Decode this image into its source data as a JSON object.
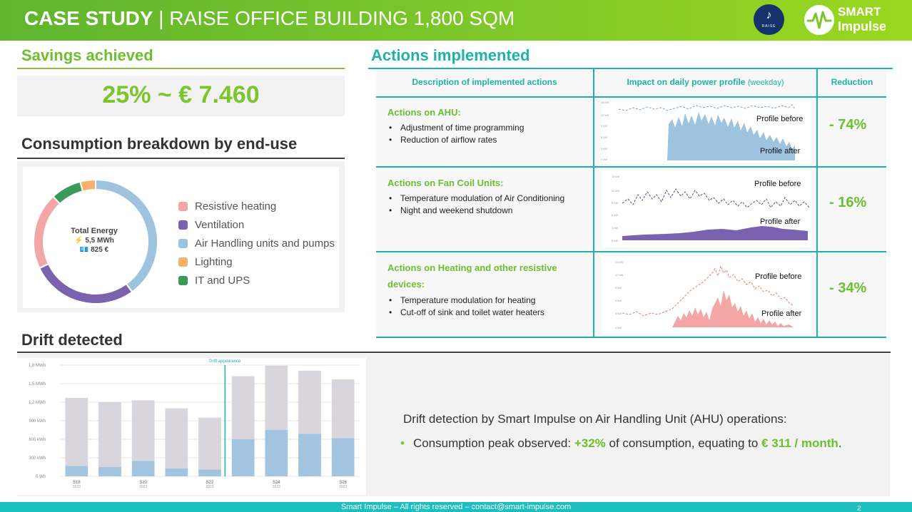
{
  "header": {
    "title_bold": "CASE STUDY",
    "title_rest": " | RAISE OFFICE BUILDING 1,800 SQM",
    "raise_logo_text": "RAISE",
    "smart_logo_line1": "SMART",
    "smart_logo_line2": "Impulse"
  },
  "savings": {
    "heading": "Savings achieved",
    "value": "25% ~ € 7.460"
  },
  "consumption": {
    "heading": "Consumption breakdown by end-use",
    "total_label": "Total Energy",
    "total_energy": "⚡ 5,5 MWh",
    "total_cost": "💶 825 €",
    "legend": [
      {
        "label": "Resistive heating",
        "color": "#f4a6a6"
      },
      {
        "label": "Ventilation",
        "color": "#7b62b0"
      },
      {
        "label": "Air Handling units and pumps",
        "color": "#9dc3df"
      },
      {
        "label": "Lighting",
        "color": "#f7b26a"
      },
      {
        "label": "IT and UPS",
        "color": "#3a9a5a"
      }
    ],
    "chart_data": {
      "type": "pie",
      "categories": [
        "Air Handling units and pumps",
        "Ventilation",
        "Resistive heating",
        "IT and UPS",
        "Lighting"
      ],
      "values": [
        40,
        28,
        20,
        8,
        4
      ],
      "colors": [
        "#9dc3df",
        "#7b62b0",
        "#f4a6a6",
        "#3a9a5a",
        "#f7b26a"
      ]
    }
  },
  "actions": {
    "heading": "Actions implemented",
    "columns": {
      "description": "Description of implemented actions",
      "impact": "Impact on daily power profile",
      "impact_note": "(weekday)",
      "reduction": "Reduction"
    },
    "rows": [
      {
        "title": "Actions on AHU:",
        "bullets": [
          "Adjustment of time programming",
          "Reduction of airflow rates"
        ],
        "reduction": "- 74%",
        "label_before": "Profile before",
        "label_after": "Profile after"
      },
      {
        "title": "Actions on Fan Coil Units:",
        "bullets": [
          "Temperature modulation of Air Conditioning",
          "Night and weekend shutdown"
        ],
        "reduction": "- 16%",
        "label_before": "Profile before",
        "label_after": "Profile after"
      },
      {
        "title": "Actions on Heating and other resistive devices:",
        "bullets": [
          "Temperature modulation for heating",
          "Cut-off of sink and toilet water heaters"
        ],
        "reduction": "- 34%",
        "label_before": "Profile before",
        "label_after": "Profile after"
      }
    ]
  },
  "drift": {
    "heading": "Drift detected",
    "annotation": "Drift appearance",
    "description": "Drift detection by Smart Impulse on Air Handling Unit (AHU) operations:",
    "bullet_prefix": "Consumption peak observed: ",
    "bullet_highlight1": "+32%",
    "bullet_middle": " of consumption, equating to ",
    "bullet_highlight2": "€ 311 / month",
    "bullet_suffix": ".",
    "chart_data": {
      "type": "bar",
      "stacked": true,
      "categories": [
        "S18",
        "S19",
        "S20",
        "S21",
        "S22",
        "S23",
        "S24",
        "S25",
        "S26"
      ],
      "tick_labels": [
        "S18",
        "S20",
        "S22",
        "S24",
        "S26"
      ],
      "tick_year": "2023",
      "y_ticks": [
        "0 Wh",
        "300 kWh",
        "600 kWh",
        "900 kWh",
        "1,2 MWh",
        "1,5 MWh",
        "1,8 MWh"
      ],
      "ylim": [
        0,
        1800
      ],
      "series": [
        {
          "values": [
            170,
            150,
            250,
            130,
            110,
            600,
            750,
            690,
            620
          ],
          "color": "#a3c4df"
        },
        {
          "values": [
            1100,
            1050,
            980,
            970,
            840,
            1020,
            1040,
            1020,
            950
          ],
          "color": "#d8d6dc"
        }
      ]
    }
  },
  "footer": {
    "text": "Smart Impulse – All rights reserved – contact@smart-impulse.com",
    "page": "2"
  }
}
